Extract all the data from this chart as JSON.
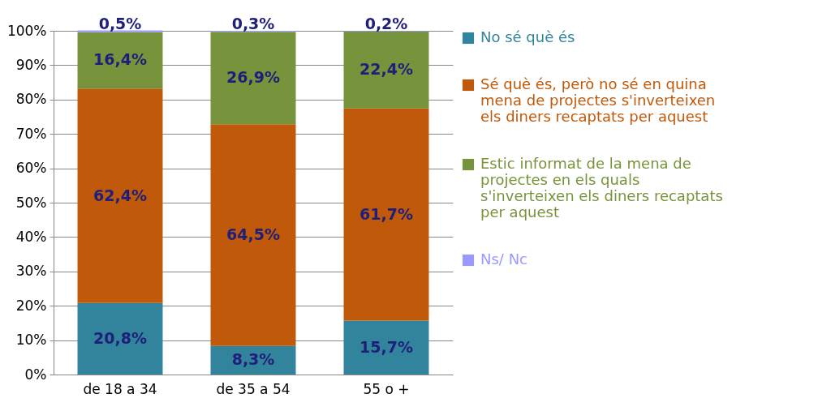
{
  "chart_data": {
    "type": "bar",
    "stacked": true,
    "categories": [
      "de 18 a 34",
      "de 35 a 54",
      "55 o +"
    ],
    "series": [
      {
        "name": "No sé què és",
        "color": "#31849b",
        "values": [
          20.8,
          8.3,
          15.7
        ],
        "value_labels": [
          "20,8%",
          "8,3%",
          "15,7%"
        ]
      },
      {
        "name": "Sé què és, però no sé en quina mena de projectes s'inverteixen els diners recaptats per aquest",
        "color": "#c0590a",
        "values": [
          62.4,
          64.5,
          61.7
        ],
        "value_labels": [
          "62,4%",
          "64,5%",
          "61,7%"
        ]
      },
      {
        "name": "Estic informat de la mena de projectes en els quals s'inverteixen els diners recaptats per aquest",
        "color": "#77933c",
        "values": [
          16.4,
          26.9,
          22.4
        ],
        "value_labels": [
          "16,4%",
          "26,9%",
          "22,4%"
        ]
      },
      {
        "name": "Ns/ Nc",
        "color": "#9999ff",
        "values": [
          0.5,
          0.3,
          0.2
        ],
        "value_labels": [
          "0,5%",
          "0,3%",
          "0,2%"
        ]
      }
    ],
    "ylim": [
      0,
      100
    ],
    "yticks": [
      {
        "value": 0,
        "label": "0%"
      },
      {
        "value": 10,
        "label": "10%"
      },
      {
        "value": 20,
        "label": "20%"
      },
      {
        "value": 30,
        "label": "30%"
      },
      {
        "value": 40,
        "label": "40%"
      },
      {
        "value": 50,
        "label": "50%"
      },
      {
        "value": 60,
        "label": "60%"
      },
      {
        "value": 70,
        "label": "70%"
      },
      {
        "value": 80,
        "label": "80%"
      },
      {
        "value": 90,
        "label": "90%"
      },
      {
        "value": 100,
        "label": "100%"
      }
    ],
    "grid": "y",
    "legend": "right"
  }
}
